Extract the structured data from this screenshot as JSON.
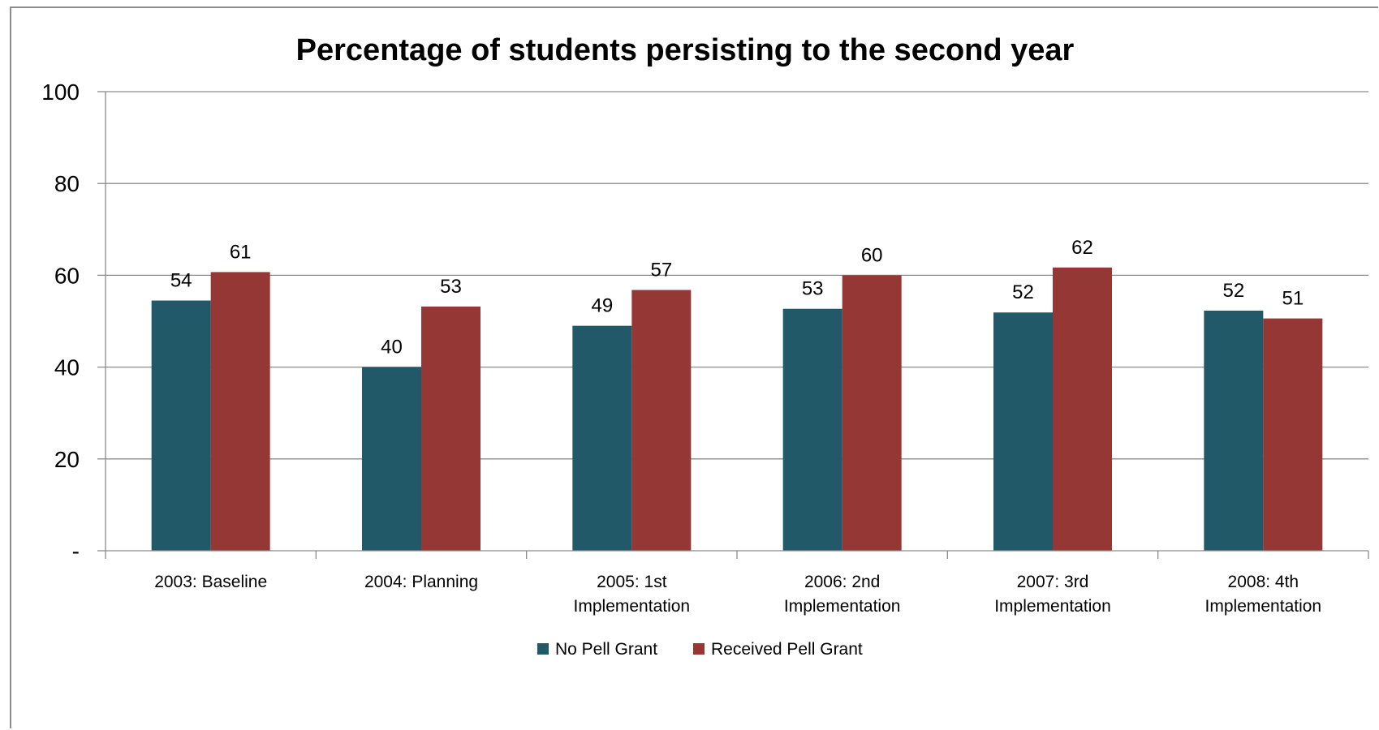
{
  "chart_data": {
    "type": "bar",
    "title": "Percentage of students persisting to the second year",
    "xlabel": "",
    "ylabel": "",
    "ylim": [
      0,
      100
    ],
    "yticks": [
      0,
      20,
      40,
      60,
      80,
      100
    ],
    "ytick_labels": [
      "-",
      "20",
      "40",
      "60",
      "80",
      "100"
    ],
    "grid": true,
    "legend_position": "bottom",
    "categories": [
      [
        "2003: Baseline"
      ],
      [
        "2004: Planning"
      ],
      [
        "2005: 1st",
        "Implementation"
      ],
      [
        "2006: 2nd",
        "Implementation"
      ],
      [
        "2007: 3rd",
        "Implementation"
      ],
      [
        "2008: 4th",
        "Implementation"
      ]
    ],
    "series": [
      {
        "name": "No Pell Grant",
        "color": "#215968",
        "values": [
          54.5,
          40,
          49,
          52.7,
          51.9,
          52.3
        ],
        "labels": [
          "54",
          "40",
          "49",
          "53",
          "52",
          "52"
        ]
      },
      {
        "name": "Received Pell Grant",
        "color": "#953735",
        "values": [
          60.7,
          53.2,
          56.8,
          60,
          61.7,
          50.6
        ],
        "labels": [
          "61",
          "53",
          "57",
          "60",
          "62",
          "51"
        ]
      }
    ]
  }
}
